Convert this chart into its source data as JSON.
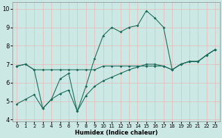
{
  "xlabel": "Humidex (Indice chaleur)",
  "xlim": [
    -0.5,
    23.5
  ],
  "ylim": [
    3.9,
    10.35
  ],
  "yticks": [
    4,
    5,
    6,
    7,
    8,
    9,
    10
  ],
  "xticks": [
    0,
    1,
    2,
    3,
    4,
    5,
    6,
    7,
    8,
    9,
    10,
    11,
    12,
    13,
    14,
    15,
    16,
    17,
    18,
    19,
    20,
    21,
    22,
    23
  ],
  "background_color": "#cce8e4",
  "grid_color": "#e8b8b8",
  "line_color": "#1a6b5a",
  "line1_x": [
    0,
    1,
    2,
    3,
    4,
    5,
    6,
    7,
    8,
    9,
    10,
    11,
    12,
    13,
    14,
    15,
    16,
    17,
    18,
    19,
    20,
    21,
    22,
    23
  ],
  "line1_y": [
    6.9,
    7.0,
    6.7,
    4.6,
    5.1,
    6.2,
    6.5,
    4.45,
    5.8,
    7.3,
    8.55,
    9.0,
    8.75,
    9.0,
    9.1,
    9.9,
    9.5,
    9.0,
    6.7,
    7.0,
    7.15,
    7.15,
    7.5,
    7.8
  ],
  "line2_x": [
    0,
    1,
    2,
    3,
    4,
    5,
    6,
    7,
    8,
    9,
    10,
    11,
    12,
    13,
    14,
    15,
    16,
    17,
    18,
    19,
    20,
    21,
    22,
    23
  ],
  "line2_y": [
    6.9,
    7.0,
    6.7,
    6.7,
    6.7,
    6.7,
    6.7,
    6.7,
    6.7,
    6.7,
    6.9,
    6.9,
    6.9,
    6.9,
    6.9,
    6.9,
    6.9,
    6.9,
    6.7,
    7.0,
    7.15,
    7.15,
    7.5,
    7.8
  ],
  "line3_x": [
    0,
    1,
    2,
    3,
    4,
    5,
    6,
    7,
    8,
    9,
    10,
    11,
    12,
    13,
    14,
    15,
    16,
    17,
    18,
    19,
    20,
    21,
    22,
    23
  ],
  "line3_y": [
    4.85,
    5.1,
    5.35,
    4.6,
    5.1,
    5.4,
    5.6,
    4.45,
    5.3,
    5.8,
    6.1,
    6.3,
    6.5,
    6.7,
    6.85,
    7.0,
    7.0,
    6.9,
    6.7,
    7.0,
    7.15,
    7.15,
    7.5,
    7.8
  ]
}
